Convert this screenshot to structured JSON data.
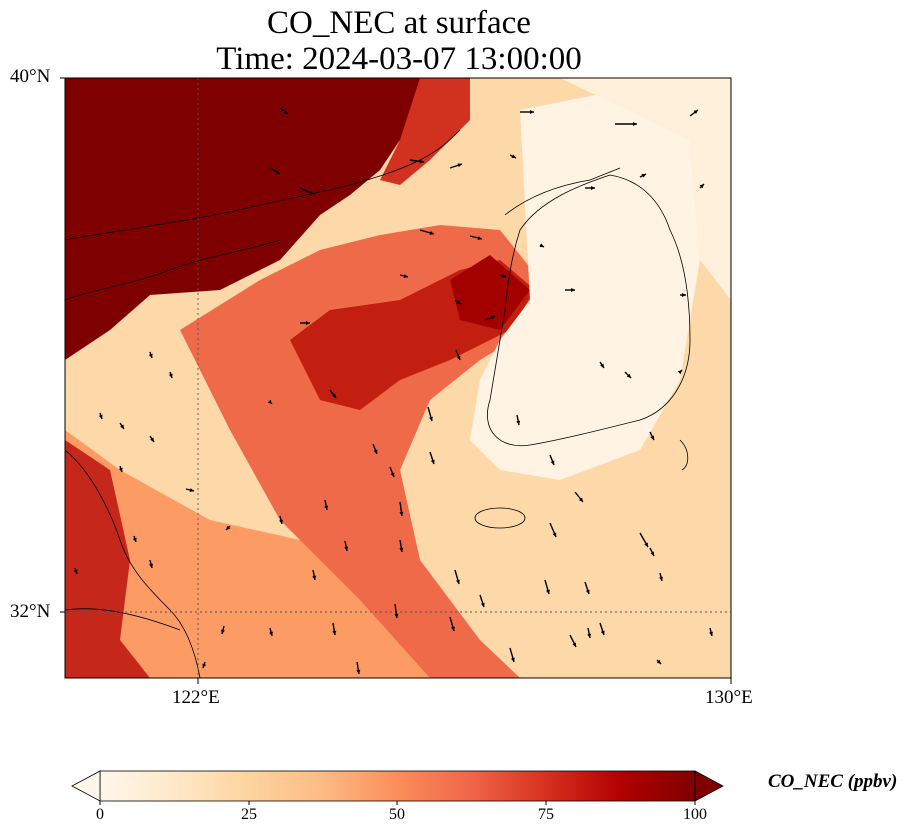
{
  "title": {
    "line1": "CO_NEC at surface",
    "line2": "Time: 2024-03-07 13:00:00"
  },
  "map": {
    "lat_ticks": [
      "40°N",
      "32°N"
    ],
    "lon_ticks": [
      "122°E",
      "130°E"
    ],
    "lat_range": [
      31,
      40
    ],
    "lon_range": [
      120,
      130
    ],
    "gridlines": [
      {
        "type": "meridian",
        "value": 122
      },
      {
        "type": "parallel",
        "value": 32
      }
    ],
    "land": [
      "China (Shandong, Liaoning, Jiangsu)",
      "Korean Peninsula",
      "Jeju Island"
    ],
    "wind_vectors": "black arrows over domain"
  },
  "colorbar": {
    "label": "CO_NEC (ppbv)",
    "ticks": [
      "0",
      "25",
      "50",
      "75",
      "100"
    ],
    "range": [
      0,
      100
    ],
    "extend": "both",
    "colormap": "OrRd",
    "colors": [
      "#fff7ec",
      "#fee8c8",
      "#fdd49e",
      "#fdbb84",
      "#fc8d59",
      "#ef6548",
      "#d7301f",
      "#b30000",
      "#7f0000"
    ]
  },
  "chart_data": {
    "type": "heatmap",
    "title": "CO_NEC at surface\nTime: 2024-03-07 13:00:00",
    "variable": "CO_NEC",
    "units": "ppbv",
    "value_range": [
      0,
      100
    ],
    "regions": [
      {
        "area": "Bohai / North China (NW corner)",
        "value": 100
      },
      {
        "area": "Central Yellow Sea plume",
        "value": 80
      },
      {
        "area": "Korea west coast near Seoul",
        "value": 85
      },
      {
        "area": "East China Sea (south-central)",
        "value": 55
      },
      {
        "area": "Korean Peninsula interior",
        "value": 5
      },
      {
        "area": "East Sea (NE)",
        "value": 10
      },
      {
        "area": "Yellow Sea west of plume",
        "value": 30
      }
    ]
  }
}
